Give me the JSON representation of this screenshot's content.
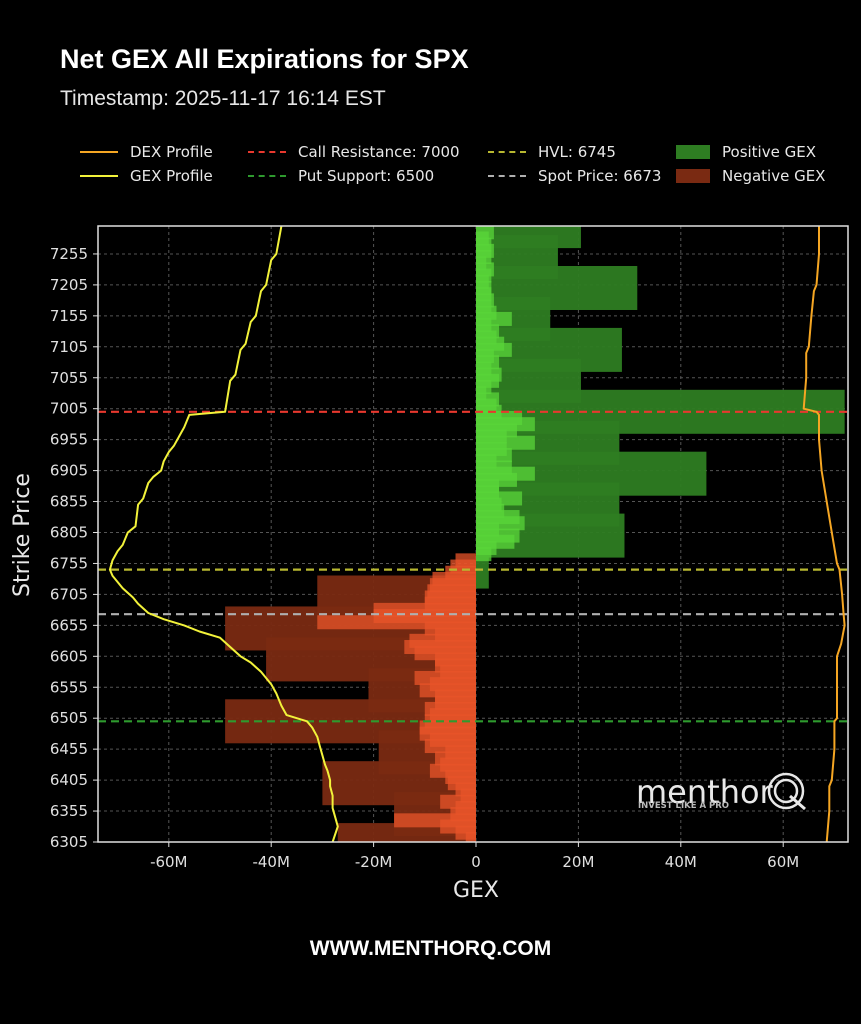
{
  "header": {
    "title": "Net GEX All Expirations for SPX",
    "timestamp": "Timestamp: 2025-11-17 16:14 EST"
  },
  "legend": {
    "items": [
      {
        "label": "DEX Profile",
        "type": "line",
        "color": "#f5a623",
        "dash": "solid"
      },
      {
        "label": "GEX Profile",
        "type": "line",
        "color": "#f2f23a",
        "dash": "solid"
      },
      {
        "label": "Call Resistance: 7000",
        "type": "line",
        "color": "#e8382e",
        "dash": "dashed"
      },
      {
        "label": "Put Support: 6500",
        "type": "line",
        "color": "#2e9a2e",
        "dash": "dashed"
      },
      {
        "label": "HVL: 6745",
        "type": "line",
        "color": "#b8b830",
        "dash": "dashed"
      },
      {
        "label": "Spot Price: 6673",
        "type": "line",
        "color": "#b0b0b0",
        "dash": "dashed"
      },
      {
        "label": "Positive GEX",
        "type": "box",
        "color": "#2e7d22"
      },
      {
        "label": "Negative GEX",
        "type": "box",
        "color": "#7a2a12"
      }
    ]
  },
  "axes": {
    "xlabel": "GEX",
    "ylabel": "Strike Price",
    "xticks": [
      "-60M",
      "-40M",
      "-20M",
      "0",
      "20M",
      "40M",
      "60M"
    ],
    "yticks": [
      "7255",
      "7205",
      "7155",
      "7105",
      "7055",
      "7005",
      "6955",
      "6905",
      "6855",
      "6805",
      "6755",
      "6705",
      "6655",
      "6605",
      "6555",
      "6505",
      "6455",
      "6405",
      "6355",
      "6305"
    ]
  },
  "watermark": {
    "brand": "menthor",
    "brand_letter": "Q",
    "tagline": "INVEST LIKE A PRO"
  },
  "footer": {
    "url": "WWW.MENTHORQ.COM"
  },
  "chart_data": {
    "type": "bar",
    "orientation": "horizontal",
    "title": "Net GEX All Expirations for SPX",
    "subtitle": "Timestamp: 2025-11-17 16:14 EST",
    "xlabel": "GEX",
    "ylabel": "Strike Price",
    "xlim": [
      -73,
      73
    ],
    "ylim": [
      6305,
      7300
    ],
    "x_unit": "M",
    "grid": true,
    "legend_position": "top",
    "levels": {
      "call_resistance": 7000,
      "put_support": 6500,
      "hvl": 6745,
      "spot_price": 6673
    },
    "major_bars": {
      "description": "Wide bars at 25-point strikes (dark green positive, dark red negative)",
      "strikes": [
        7300,
        7250,
        7200,
        7150,
        7100,
        7050,
        7000,
        6950,
        6900,
        6850,
        6800,
        6750,
        6700,
        6650,
        6600,
        6550,
        6500,
        6450,
        6400,
        6350,
        6300
      ],
      "values": [
        20.5,
        16,
        31.5,
        14.5,
        28.5,
        20.5,
        72,
        28,
        45,
        28,
        29,
        2.5,
        -31,
        -49,
        -41,
        -21,
        -49,
        -19,
        -30,
        -16,
        -27
      ]
    },
    "minor_bars": {
      "description": "Narrow bars at 5-point strikes (bright green positive, bright orange-red negative)",
      "strikes": [
        7290,
        7280,
        7270,
        7260,
        7250,
        7240,
        7230,
        7220,
        7210,
        7200,
        7190,
        7180,
        7170,
        7160,
        7150,
        7140,
        7130,
        7120,
        7110,
        7100,
        7090,
        7080,
        7070,
        7060,
        7050,
        7040,
        7030,
        7020,
        7010,
        7000,
        6990,
        6980,
        6970,
        6960,
        6950,
        6940,
        6930,
        6920,
        6910,
        6900,
        6890,
        6880,
        6870,
        6860,
        6850,
        6840,
        6830,
        6820,
        6810,
        6800,
        6790,
        6780,
        6770,
        6760,
        6750,
        6740,
        6730,
        6720,
        6710,
        6700,
        6690,
        6680,
        6670,
        6660,
        6650,
        6640,
        6630,
        6620,
        6610,
        6600,
        6590,
        6580,
        6570,
        6560,
        6550,
        6540,
        6530,
        6520,
        6510,
        6500,
        6490,
        6480,
        6470,
        6460,
        6450,
        6440,
        6430,
        6420,
        6410,
        6400,
        6390,
        6380,
        6370,
        6360,
        6350,
        6340,
        6330,
        6320,
        6310
      ],
      "values": [
        3.5,
        2.5,
        3,
        3.5,
        3,
        2,
        3.5,
        3,
        2.5,
        3,
        3,
        3.5,
        3,
        4,
        7,
        3,
        4.5,
        4,
        5.5,
        7,
        3.5,
        4.5,
        3,
        5,
        4.5,
        3,
        2,
        4.5,
        4,
        5,
        9,
        11.5,
        8,
        6,
        11.5,
        6,
        7,
        4,
        7,
        11.5,
        8,
        4.5,
        4.5,
        9,
        5,
        5.5,
        8.5,
        9.5,
        4.5,
        8.5,
        7.5,
        4,
        3,
        -4,
        -5,
        -6,
        -8.5,
        -9,
        -9.5,
        -10,
        -10,
        -20,
        -20,
        -31,
        -10,
        -8,
        -13,
        -14,
        -12,
        -8,
        -8,
        -7,
        -12,
        -9,
        -11,
        -8,
        -8,
        -10,
        -9,
        -10,
        -11,
        -11,
        -9,
        -10,
        -6,
        -8,
        -7,
        -9,
        -6,
        -5.5,
        -4,
        -3,
        -7,
        -4,
        -5,
        -16,
        -7,
        -4,
        -2,
        1
      ]
    },
    "series": [
      {
        "name": "GEX Profile",
        "color": "#f2f23a",
        "strikes": [
          7300,
          7255,
          7245,
          7205,
          7195,
          7155,
          7145,
          7110,
          7100,
          7060,
          7050,
          7000,
          6995,
          6975,
          6960,
          6945,
          6935,
          6920,
          6905,
          6895,
          6885,
          6860,
          6850,
          6815,
          6805,
          6785,
          6775,
          6760,
          6745,
          6735,
          6715,
          6700,
          6690,
          6675,
          6665,
          6655,
          6645,
          6635,
          6620,
          6605,
          6595,
          6580,
          6560,
          6545,
          6525,
          6510,
          6500,
          6490,
          6475,
          6460,
          6445,
          6430,
          6420,
          6405,
          6395,
          6380,
          6360,
          6345,
          6330,
          6305
        ],
        "values": [
          -38,
          -39,
          -40,
          -41,
          -42,
          -43,
          -44,
          -45,
          -46,
          -47,
          -48,
          -49,
          -56,
          -57,
          -58,
          -59,
          -60,
          -61,
          -61.5,
          -63,
          -64,
          -65,
          -66,
          -66.5,
          -68,
          -69,
          -70,
          -71,
          -71.5,
          -71,
          -69,
          -67,
          -66,
          -64,
          -61,
          -57,
          -54,
          -50,
          -48,
          -46,
          -44,
          -42,
          -40,
          -39,
          -38,
          -37,
          -33,
          -32,
          -31,
          -30.5,
          -30,
          -29.5,
          -29,
          -28.5,
          -28.5,
          -28,
          -28,
          -27.5,
          -27,
          -28
        ]
      },
      {
        "name": "DEX Profile",
        "color": "#f5a623",
        "strikes": [
          7300,
          7255,
          7205,
          7195,
          7155,
          7105,
          7095,
          7055,
          7005,
          7000,
          6995,
          6955,
          6905,
          6855,
          6805,
          6755,
          6745,
          6705,
          6673,
          6655,
          6625,
          6605,
          6555,
          6505,
          6500,
          6455,
          6405,
          6395,
          6355,
          6305
        ],
        "values": [
          67,
          67,
          66.5,
          66,
          65.5,
          65,
          64.5,
          64.5,
          64,
          66.5,
          67,
          67,
          67.5,
          68.5,
          69.5,
          70.5,
          71,
          71.5,
          71.8,
          72,
          71.3,
          70.5,
          70.5,
          70.5,
          70,
          70,
          69.5,
          69,
          69,
          68.5
        ]
      }
    ]
  }
}
